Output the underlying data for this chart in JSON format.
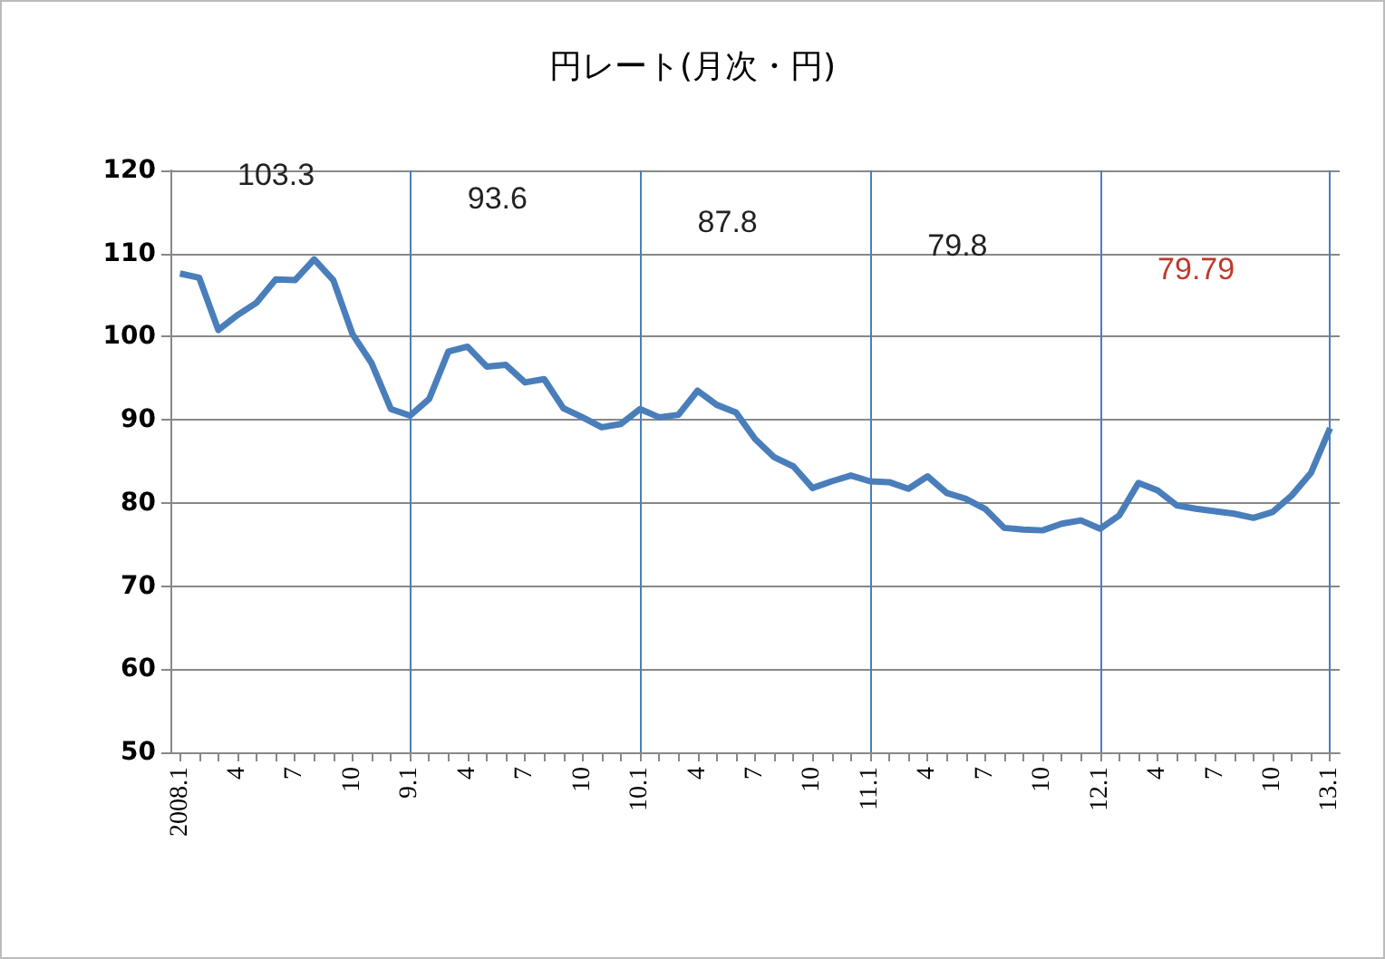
{
  "chart_data": {
    "type": "line",
    "title": "円レート(月次・円)",
    "categories": [
      "2008.1",
      null,
      null,
      "4",
      null,
      null,
      "7",
      null,
      null,
      "10",
      null,
      null,
      "9.1",
      null,
      null,
      "4",
      null,
      null,
      "7",
      null,
      null,
      "10",
      null,
      null,
      "10.1",
      null,
      null,
      "4",
      null,
      null,
      "7",
      null,
      null,
      "10",
      null,
      null,
      "11.1",
      null,
      null,
      "4",
      null,
      null,
      "7",
      null,
      null,
      "10",
      null,
      null,
      "12.1",
      null,
      null,
      "4",
      null,
      null,
      "7",
      null,
      null,
      "10",
      null,
      null,
      "13.1"
    ],
    "series": [
      {
        "color": "#4a7ebb",
        "values": [
          107.6,
          107.1,
          100.8,
          102.6,
          104.1,
          106.9,
          106.8,
          109.3,
          106.8,
          100.3,
          96.8,
          91.3,
          90.5,
          92.5,
          98.2,
          98.8,
          96.4,
          96.6,
          94.5,
          94.9,
          91.4,
          90.3,
          89.1,
          89.5,
          91.3,
          90.3,
          90.6,
          93.5,
          91.8,
          90.9,
          87.7,
          85.5,
          84.4,
          81.8,
          82.6,
          83.3,
          82.6,
          82.5,
          81.7,
          83.2,
          81.2,
          80.5,
          79.3,
          77.0,
          76.8,
          76.7,
          77.5,
          77.9,
          76.9,
          78.5,
          82.4,
          81.5,
          79.7,
          79.3,
          79.0,
          78.7,
          78.2,
          78.9,
          80.9,
          83.6,
          89.0
        ]
      }
    ],
    "ylim": [
      50,
      120
    ],
    "yticks": [
      50,
      60,
      70,
      80,
      90,
      100,
      110,
      120
    ],
    "grid": "y",
    "marker": "none",
    "line_style": "solid",
    "ref_lines": [
      {
        "axis": "x",
        "value": "9.1",
        "color": "#4a7ebb"
      },
      {
        "axis": "x",
        "value": "10.1",
        "color": "#4a7ebb"
      },
      {
        "axis": "x",
        "value": "11.1",
        "color": "#4a7ebb"
      },
      {
        "axis": "x",
        "value": "12.1",
        "color": "#4a7ebb"
      },
      {
        "axis": "x",
        "value": "13.1",
        "color": "#4a7ebb"
      }
    ],
    "annotations": [
      "103.3",
      "93.6",
      "87.8",
      "79.8",
      "79.79"
    ]
  }
}
